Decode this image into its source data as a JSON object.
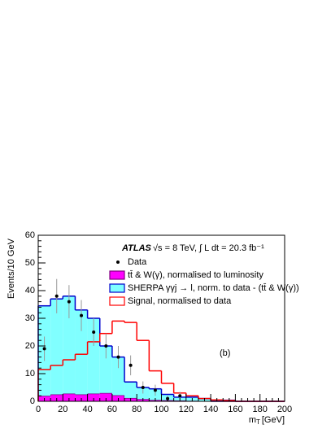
{
  "chart_data": {
    "type": "histogram",
    "ylabel": "Events/10 GeV",
    "xlabel": "m",
    "xlabel_sub": "T",
    "xlabel_unit": "[GeV]",
    "experiment": "ATLAS",
    "luminosity_text": "√s = 8 TeV, ∫ L dt = 20.3 fb⁻¹",
    "panel_label": "(b)",
    "bins": [
      0,
      10,
      20,
      30,
      40,
      50,
      60,
      70,
      80,
      90,
      100,
      110,
      120,
      130,
      140,
      150,
      160,
      170,
      180,
      190,
      200
    ],
    "series": [
      {
        "name": "tt̄ & W(γ), normalised to luminosity",
        "color": "#ff00ff",
        "edge": "#800080",
        "stacked": true,
        "values": [
          2,
          2.5,
          2.8,
          2.5,
          2.8,
          3,
          2.2,
          1.2,
          0.8,
          0.5,
          0.4,
          0.3,
          0.2,
          0.1,
          0,
          0,
          0,
          0,
          0,
          0
        ]
      },
      {
        "name": "SHERPA γγj → l, norm. to data - (tt̄ & W(γ))",
        "color": "#80ffff",
        "edge": "#0000cc",
        "stacked": true,
        "values": [
          32.5,
          34.5,
          35.2,
          30.5,
          27.2,
          17,
          13.8,
          5.8,
          4.2,
          4,
          2.1,
          1.2,
          1.3,
          0.9,
          0.4,
          0.4,
          0,
          0,
          0,
          0
        ]
      },
      {
        "name": "Signal, normalised to data",
        "color": "none",
        "edge": "#ff0000",
        "stacked": false,
        "values": [
          11.5,
          13,
          15,
          17,
          21.5,
          24.5,
          29,
          28.5,
          22,
          11,
          6.5,
          3,
          2,
          1,
          0.5,
          0.3,
          0,
          0,
          0,
          0
        ]
      }
    ],
    "data": {
      "name": "Data",
      "color": "#000000",
      "x": [
        5,
        15,
        25,
        35,
        45,
        55,
        65,
        75,
        85,
        95,
        105,
        115
      ],
      "values": [
        19,
        38,
        36,
        31,
        25,
        20,
        16,
        13,
        5,
        4,
        1,
        2
      ],
      "errors": [
        4.4,
        6.2,
        6,
        5.6,
        5,
        4.5,
        4,
        3.6,
        2.2,
        2,
        1,
        1.4
      ]
    },
    "xlim": [
      0,
      200
    ],
    "xticks": [
      0,
      20,
      40,
      60,
      80,
      100,
      120,
      140,
      160,
      180,
      200
    ],
    "ylim": [
      0,
      60
    ],
    "yticks": [
      0,
      10,
      20,
      30,
      40,
      50,
      60
    ]
  }
}
